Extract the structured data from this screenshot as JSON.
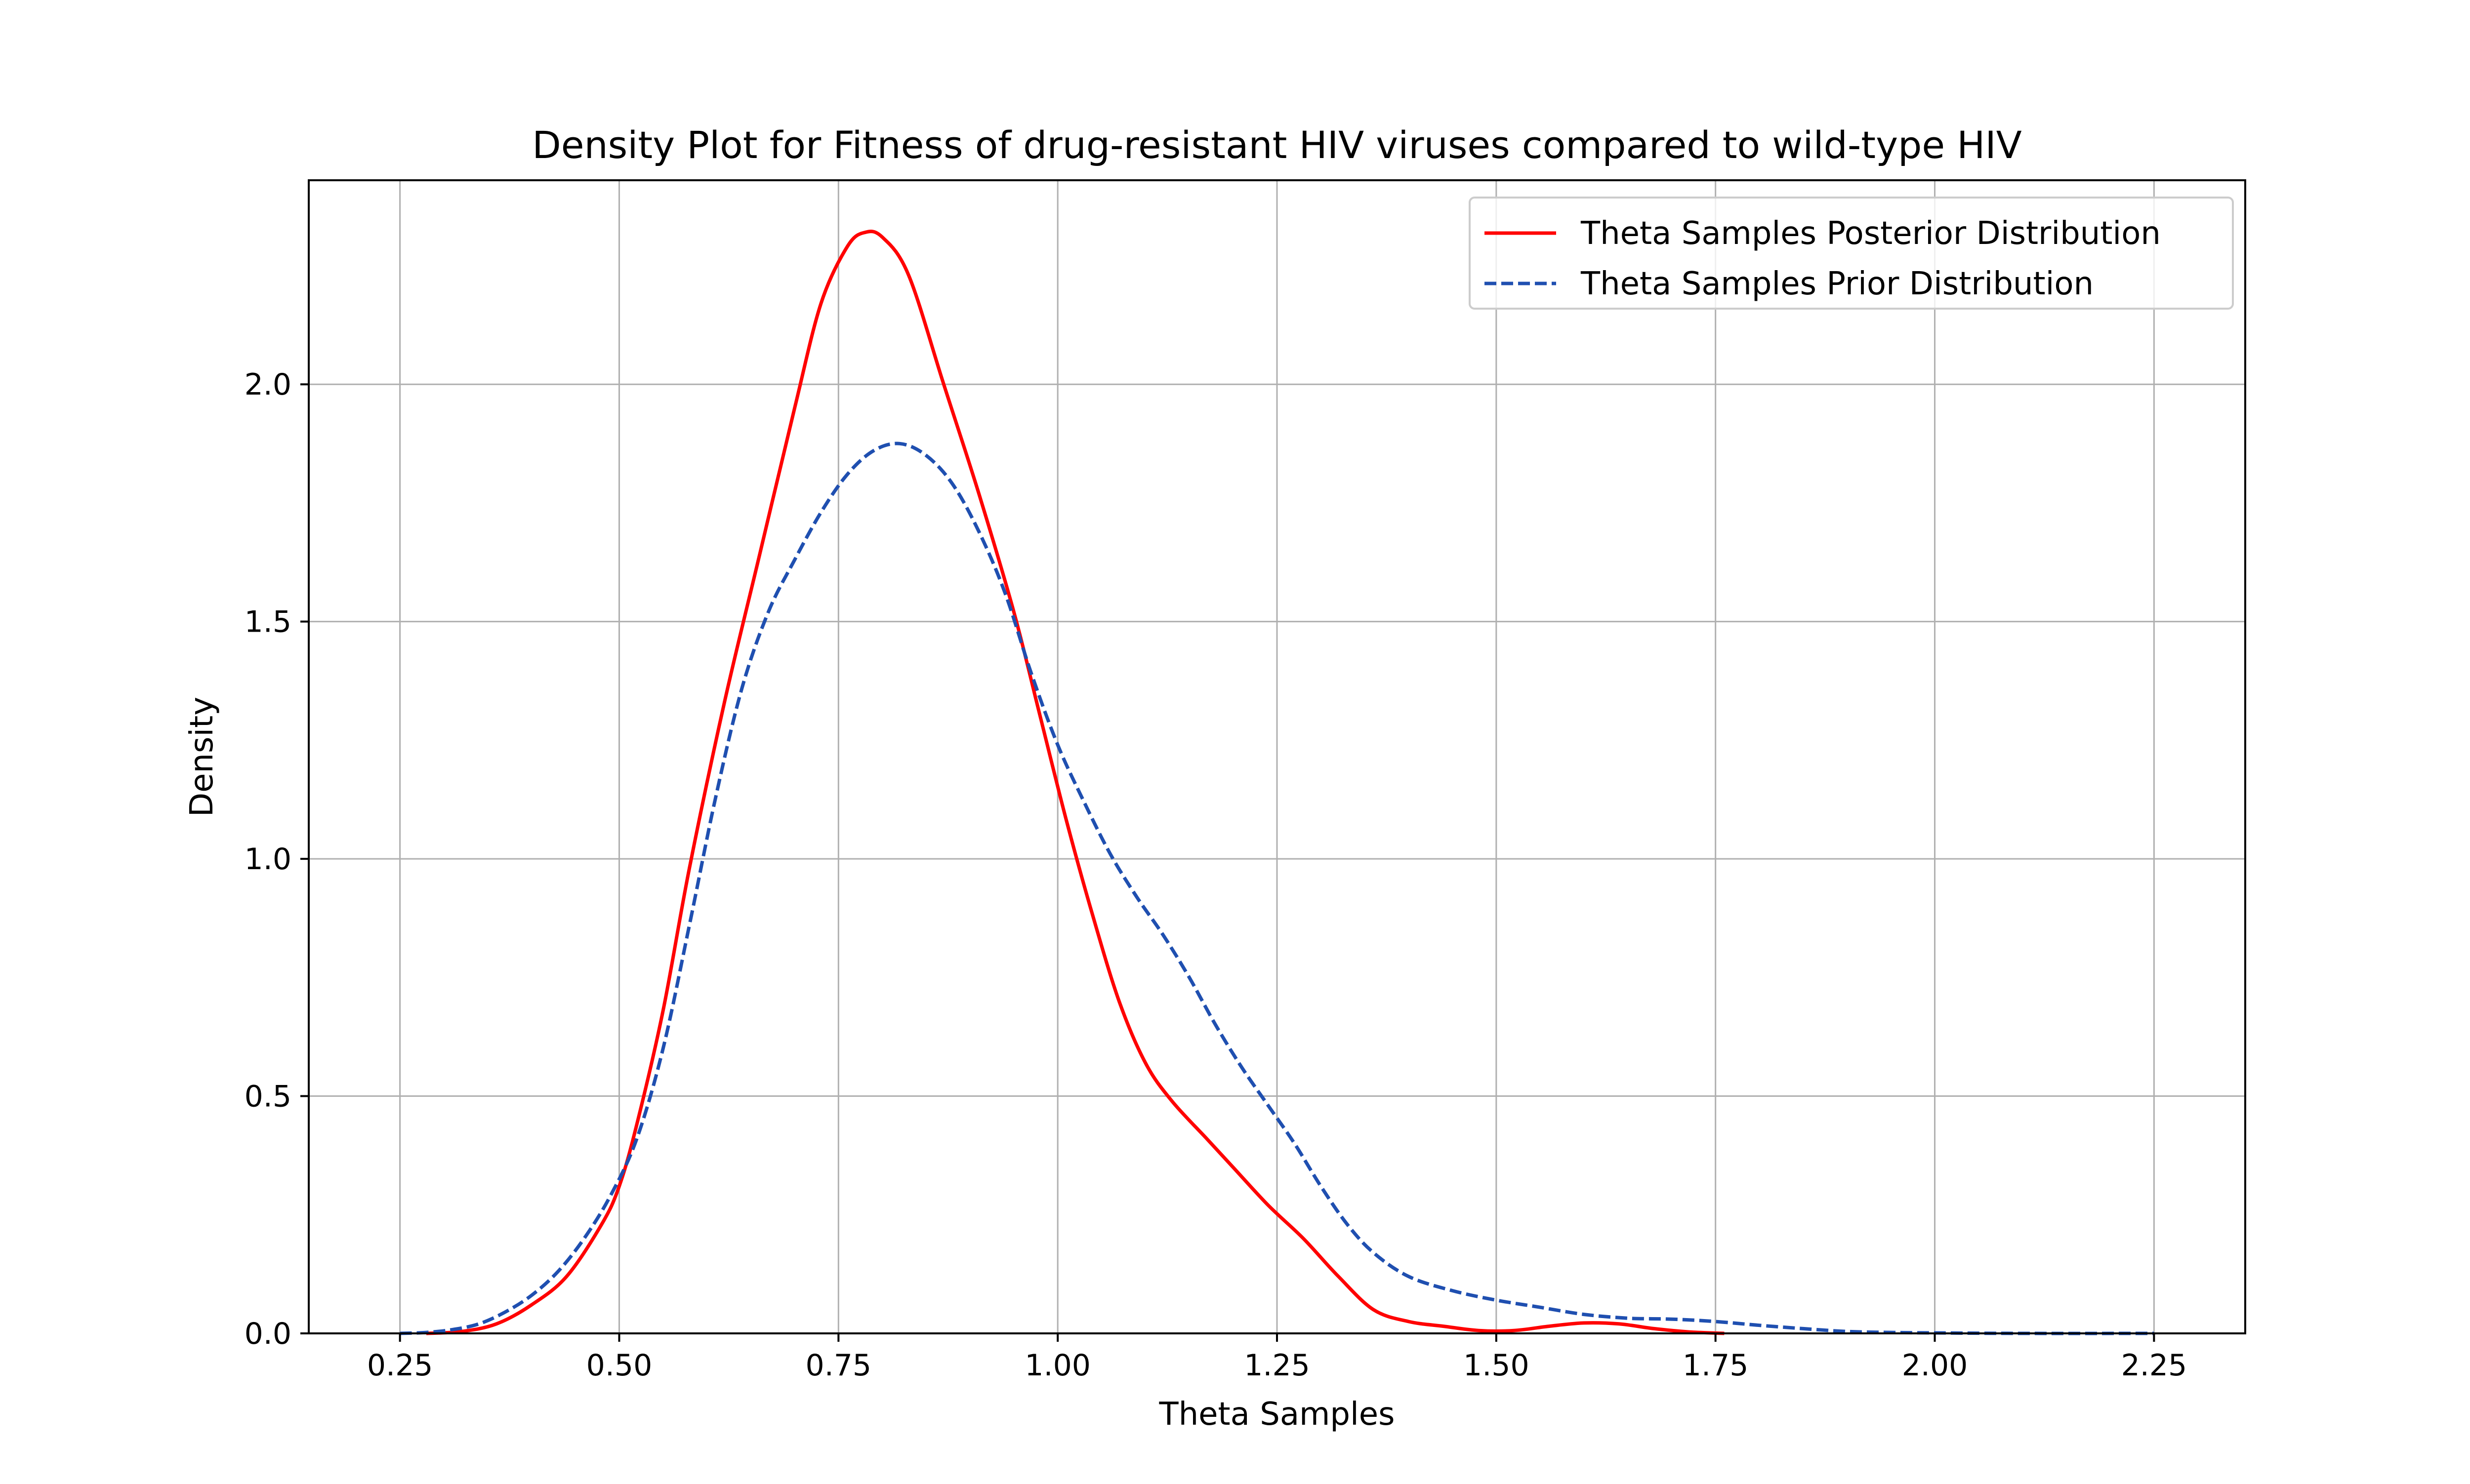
{
  "chart_data": {
    "type": "line",
    "title": "Density Plot for Fitness of drug-resistant HIV viruses compared to wild-type HIV",
    "xlabel": "Theta Samples",
    "ylabel": "Density",
    "xlim": [
      0.146,
      2.354
    ],
    "ylim": [
      0,
      2.43
    ],
    "xticks": [
      0.25,
      0.5,
      0.75,
      1.0,
      1.25,
      1.5,
      1.75,
      2.0,
      2.25
    ],
    "xtick_labels": [
      "0.25",
      "0.50",
      "0.75",
      "1.00",
      "1.25",
      "1.50",
      "1.75",
      "2.00",
      "2.25"
    ],
    "yticks": [
      0.0,
      0.5,
      1.0,
      1.5,
      2.0
    ],
    "ytick_labels": [
      "0.0",
      "0.5",
      "1.0",
      "1.5",
      "2.0"
    ],
    "grid": true,
    "legend_position": "top-right",
    "series": [
      {
        "name": "Theta Samples Posterior Distribution",
        "color": "#ff0000",
        "style": "solid",
        "points": [
          [
            0.28,
            0.0
          ],
          [
            0.32,
            0.004
          ],
          [
            0.36,
            0.02
          ],
          [
            0.4,
            0.06
          ],
          [
            0.44,
            0.12
          ],
          [
            0.48,
            0.23
          ],
          [
            0.5,
            0.31
          ],
          [
            0.52,
            0.44
          ],
          [
            0.55,
            0.68
          ],
          [
            0.58,
            0.98
          ],
          [
            0.62,
            1.33
          ],
          [
            0.66,
            1.64
          ],
          [
            0.7,
            1.95
          ],
          [
            0.73,
            2.17
          ],
          [
            0.76,
            2.29
          ],
          [
            0.78,
            2.32
          ],
          [
            0.8,
            2.31
          ],
          [
            0.83,
            2.23
          ],
          [
            0.87,
            2.0
          ],
          [
            0.91,
            1.77
          ],
          [
            0.95,
            1.52
          ],
          [
            0.98,
            1.3
          ],
          [
            1.01,
            1.08
          ],
          [
            1.04,
            0.88
          ],
          [
            1.07,
            0.7
          ],
          [
            1.1,
            0.57
          ],
          [
            1.13,
            0.49
          ],
          [
            1.17,
            0.41
          ],
          [
            1.2,
            0.35
          ],
          [
            1.24,
            0.27
          ],
          [
            1.28,
            0.2
          ],
          [
            1.32,
            0.12
          ],
          [
            1.36,
            0.05
          ],
          [
            1.4,
            0.025
          ],
          [
            1.44,
            0.015
          ],
          [
            1.48,
            0.006
          ],
          [
            1.52,
            0.006
          ],
          [
            1.56,
            0.015
          ],
          [
            1.6,
            0.022
          ],
          [
            1.64,
            0.02
          ],
          [
            1.68,
            0.01
          ],
          [
            1.72,
            0.003
          ],
          [
            1.76,
            0.0
          ]
        ]
      },
      {
        "name": "Theta Samples Prior Distribution",
        "color": "#1f4fb0",
        "style": "dashed",
        "points": [
          [
            0.25,
            0.0
          ],
          [
            0.28,
            0.002
          ],
          [
            0.31,
            0.008
          ],
          [
            0.34,
            0.02
          ],
          [
            0.37,
            0.045
          ],
          [
            0.4,
            0.08
          ],
          [
            0.43,
            0.13
          ],
          [
            0.46,
            0.2
          ],
          [
            0.49,
            0.29
          ],
          [
            0.52,
            0.41
          ],
          [
            0.55,
            0.6
          ],
          [
            0.58,
            0.86
          ],
          [
            0.61,
            1.13
          ],
          [
            0.64,
            1.36
          ],
          [
            0.67,
            1.52
          ],
          [
            0.7,
            1.63
          ],
          [
            0.73,
            1.73
          ],
          [
            0.76,
            1.81
          ],
          [
            0.79,
            1.86
          ],
          [
            0.82,
            1.875
          ],
          [
            0.85,
            1.85
          ],
          [
            0.88,
            1.79
          ],
          [
            0.91,
            1.69
          ],
          [
            0.94,
            1.56
          ],
          [
            0.97,
            1.39
          ],
          [
            1.0,
            1.24
          ],
          [
            1.03,
            1.12
          ],
          [
            1.06,
            1.01
          ],
          [
            1.09,
            0.92
          ],
          [
            1.12,
            0.84
          ],
          [
            1.15,
            0.75
          ],
          [
            1.18,
            0.65
          ],
          [
            1.21,
            0.56
          ],
          [
            1.24,
            0.48
          ],
          [
            1.27,
            0.4
          ],
          [
            1.3,
            0.31
          ],
          [
            1.33,
            0.23
          ],
          [
            1.36,
            0.17
          ],
          [
            1.4,
            0.12
          ],
          [
            1.45,
            0.09
          ],
          [
            1.5,
            0.07
          ],
          [
            1.55,
            0.055
          ],
          [
            1.6,
            0.04
          ],
          [
            1.65,
            0.032
          ],
          [
            1.7,
            0.03
          ],
          [
            1.75,
            0.025
          ],
          [
            1.8,
            0.017
          ],
          [
            1.85,
            0.01
          ],
          [
            1.9,
            0.004
          ],
          [
            1.95,
            0.002
          ],
          [
            2.0,
            0.001
          ],
          [
            2.1,
            0.0
          ],
          [
            2.25,
            0.0
          ]
        ]
      }
    ]
  }
}
